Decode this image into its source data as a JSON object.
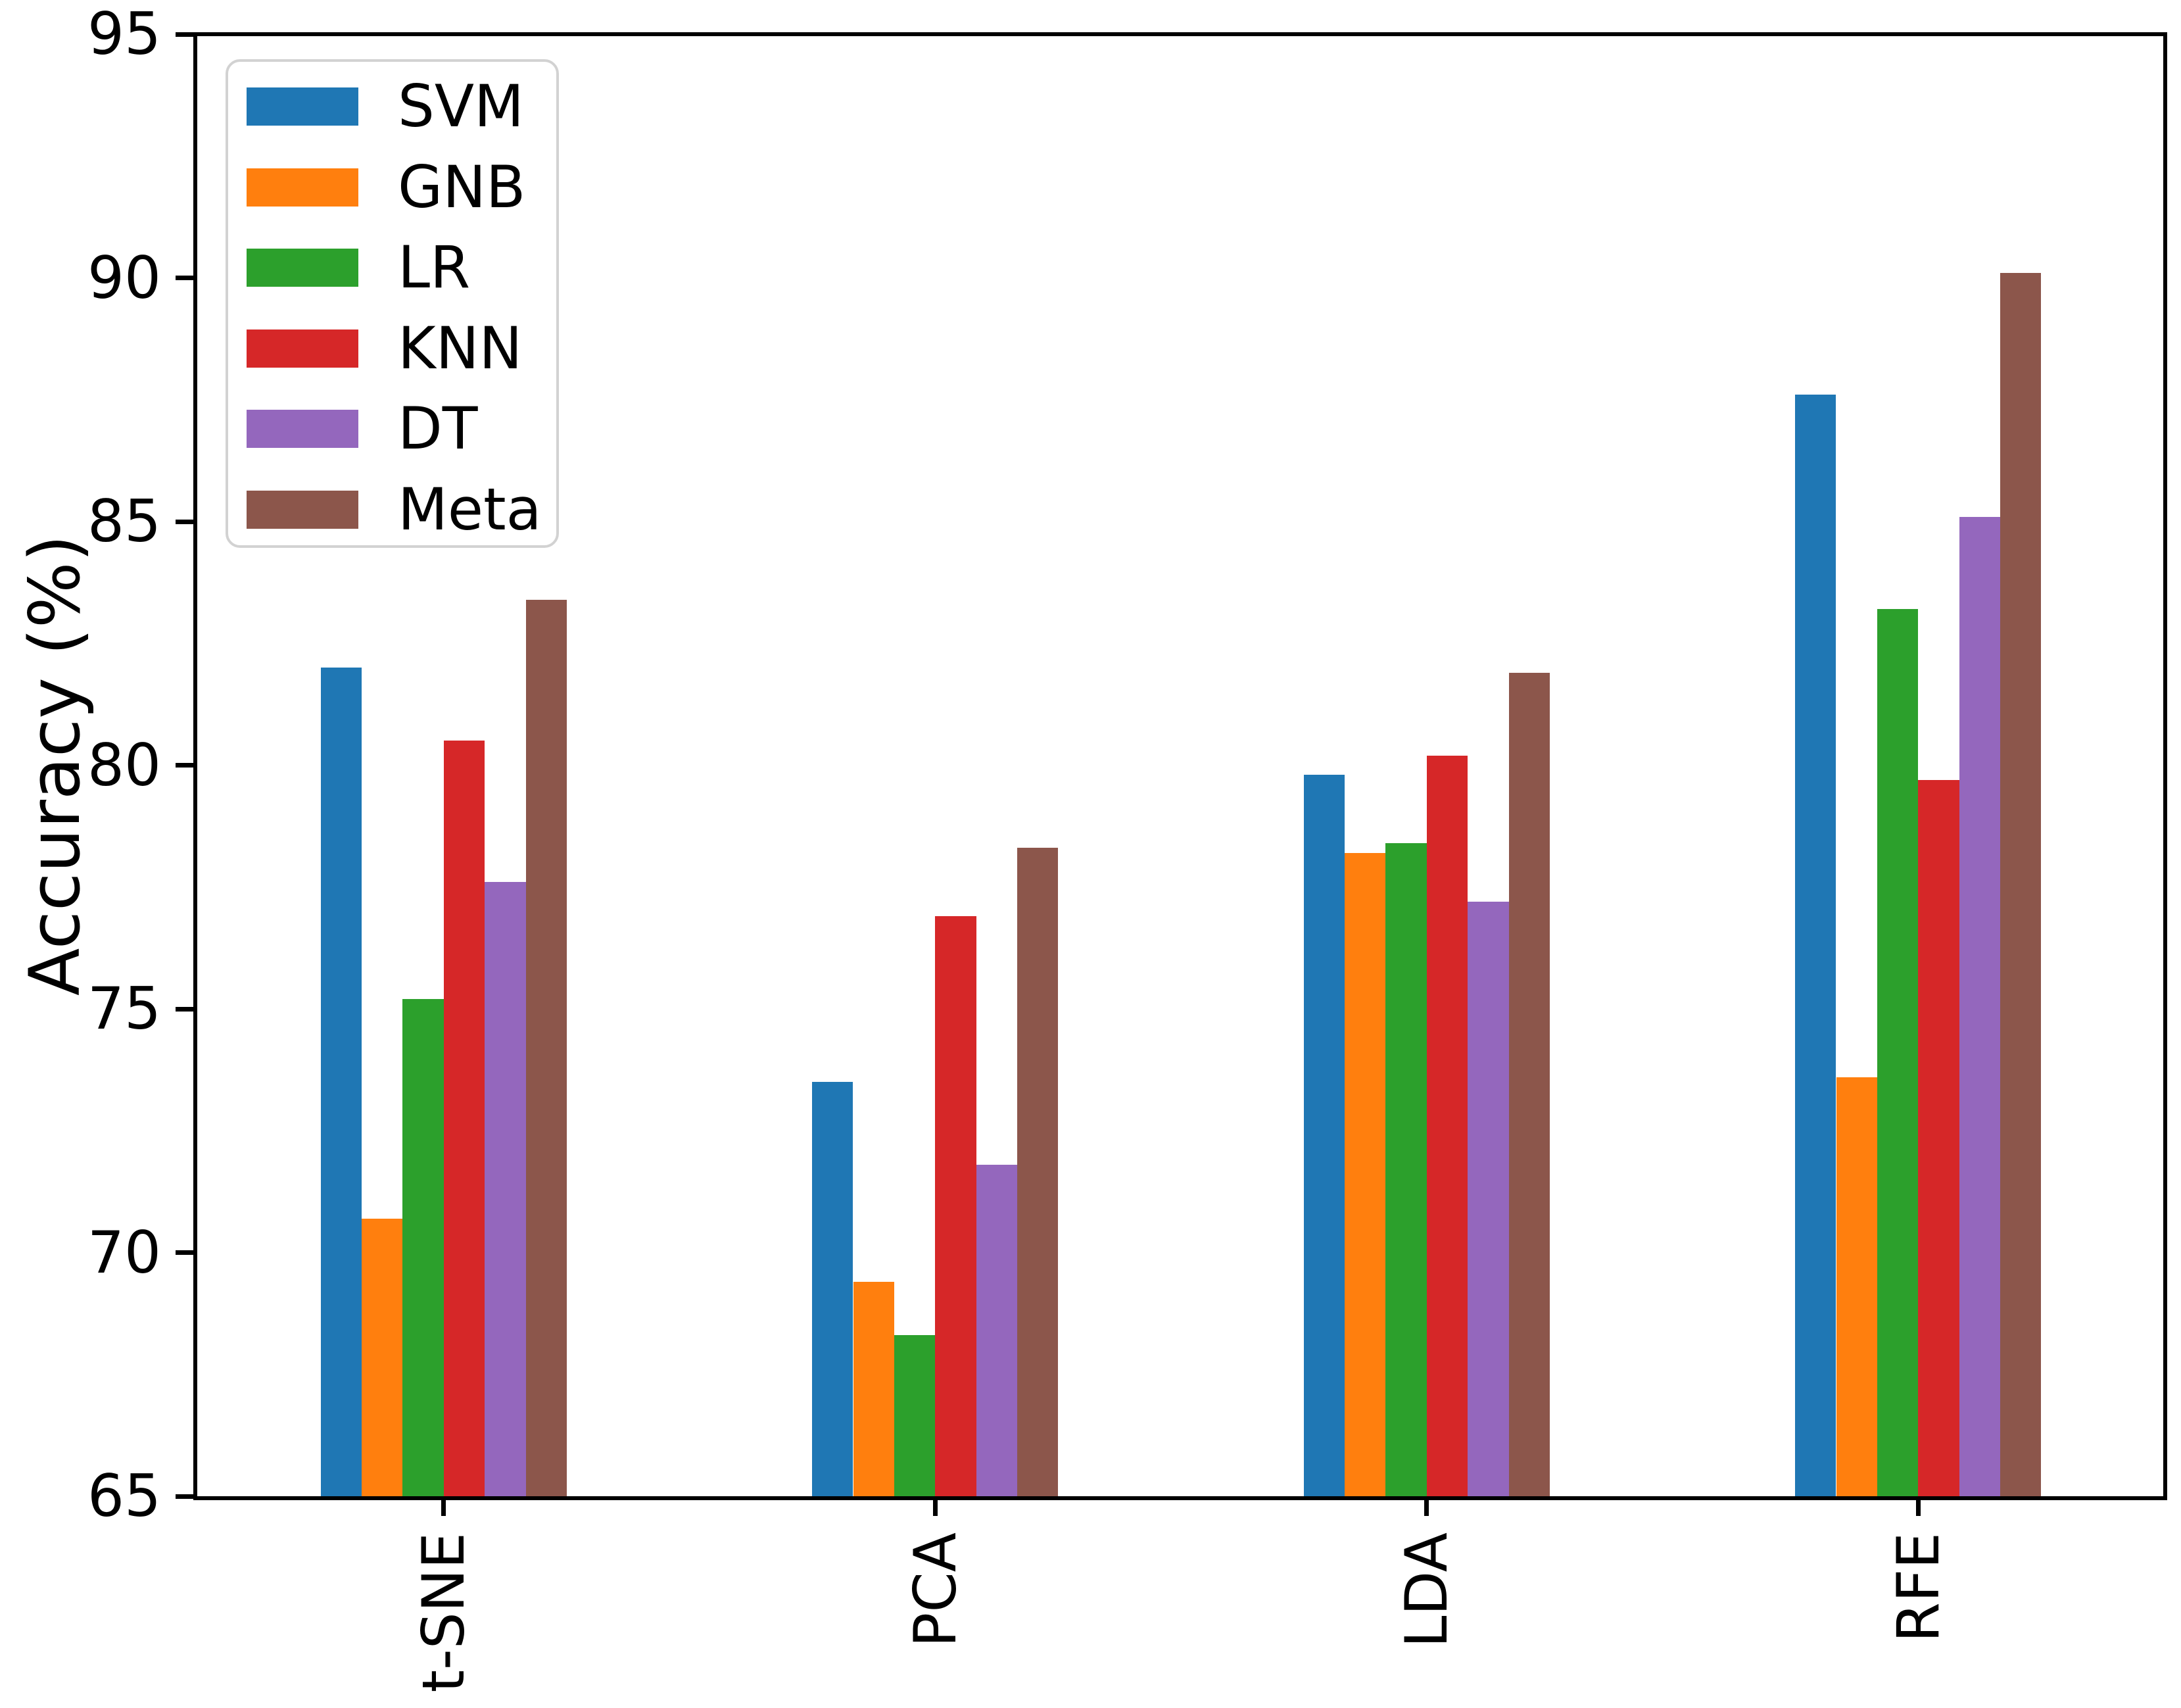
{
  "chart_data": {
    "type": "bar",
    "title": "",
    "xlabel": "",
    "ylabel": "Accuracy (%)",
    "ylim": [
      65,
      95
    ],
    "yticks": [
      65,
      70,
      75,
      80,
      85,
      90,
      95
    ],
    "grid": false,
    "legend_position": "upper left",
    "categories": [
      "t-SNE",
      "PCA",
      "LDA",
      "RFE"
    ],
    "series": [
      {
        "name": "SVM",
        "color": "#1f77b4",
        "values": [
          82.0,
          73.5,
          79.8,
          87.6
        ]
      },
      {
        "name": "GNB",
        "color": "#ff7f0e",
        "values": [
          70.7,
          69.4,
          78.2,
          73.6
        ]
      },
      {
        "name": "LR",
        "color": "#2ca02c",
        "values": [
          75.2,
          68.3,
          78.4,
          83.2
        ]
      },
      {
        "name": "KNN",
        "color": "#d62728",
        "values": [
          80.5,
          76.9,
          80.2,
          79.7
        ]
      },
      {
        "name": "DT",
        "color": "#9467bd",
        "values": [
          77.6,
          71.8,
          77.2,
          85.1
        ]
      },
      {
        "name": "Meta",
        "color": "#8c564b",
        "values": [
          83.4,
          78.3,
          81.9,
          90.1
        ]
      }
    ]
  }
}
